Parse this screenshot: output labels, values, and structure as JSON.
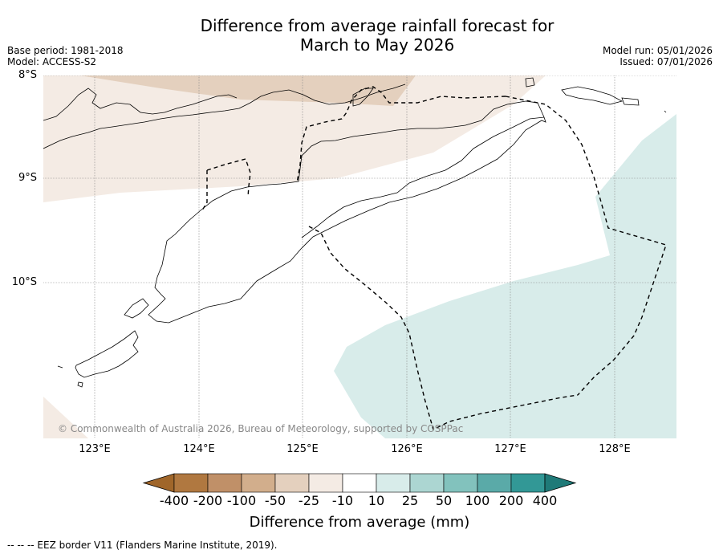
{
  "title": {
    "line1": "Difference from average rainfall forecast for",
    "line2": "March to May 2026"
  },
  "meta": {
    "base_period": "Base period: 1981-2018",
    "model": "Model: ACCESS-S2",
    "model_run": "Model run: 05/01/2026",
    "issued": "Issued: 07/01/2026"
  },
  "axes": {
    "lat_labels": [
      "8°S",
      "9°S",
      "10°S"
    ],
    "lon_labels": [
      "123°E",
      "124°E",
      "125°E",
      "126°E",
      "127°E",
      "128°E"
    ]
  },
  "copyright": "© Commonwealth of Australia 2026, Bureau of Meteorology, supported by COSPPac",
  "colorbar": {
    "ticks": [
      "-400",
      "-200",
      "-100",
      "-50",
      "-25",
      "-10",
      "10",
      "25",
      "50",
      "100",
      "200",
      "400"
    ],
    "colors": [
      "#a0662a",
      "#b07840",
      "#c09068",
      "#d2ae8c",
      "#e4d0be",
      "#f4ebe4",
      "#ffffff",
      "#d8ecea",
      "#acd6d2",
      "#82c2bd",
      "#5aaaa8",
      "#329896",
      "#1f7a78"
    ],
    "label": "Difference from average (mm)"
  },
  "legend_note": "--  --  -- EEZ border V11 (Flanders Marine Institute, 2019)."
}
